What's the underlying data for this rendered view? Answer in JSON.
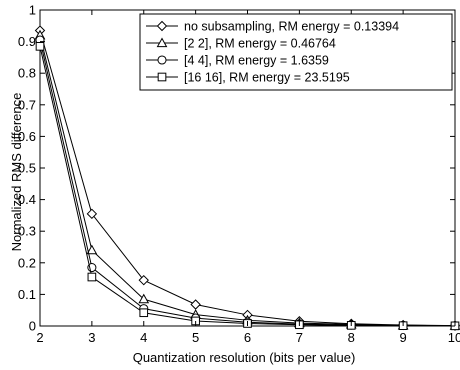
{
  "chart_data": {
    "type": "line",
    "xlabel": "Quantization resolution (bits per value)",
    "ylabel": "Normalized RMS difference",
    "xlim": [
      2,
      10
    ],
    "ylim": [
      0,
      1
    ],
    "x_ticks": [
      "2",
      "3",
      "4",
      "5",
      "6",
      "7",
      "8",
      "9",
      "10"
    ],
    "y_ticks": [
      "0",
      "0.1",
      "0.2",
      "0.3",
      "0.4",
      "0.5",
      "0.6",
      "0.7",
      "0.8",
      "0.9",
      "1"
    ],
    "grid": false,
    "legend_position": "top-right",
    "x": [
      2,
      3,
      4,
      5,
      6,
      7,
      8,
      9,
      10
    ],
    "series": [
      {
        "name": "no subsampling, RM energy = 0.13394",
        "marker": "diamond",
        "values": [
          0.935,
          0.355,
          0.145,
          0.068,
          0.035,
          0.015,
          0.007,
          0.003,
          0.001
        ]
      },
      {
        "name": "[2 2], RM energy = 0.46764",
        "marker": "triangle",
        "values": [
          0.92,
          0.24,
          0.085,
          0.036,
          0.018,
          0.009,
          0.005,
          0.002,
          0.001
        ]
      },
      {
        "name": "[4 4], RM energy = 1.6359",
        "marker": "circle",
        "values": [
          0.905,
          0.185,
          0.055,
          0.025,
          0.012,
          0.006,
          0.003,
          0.002,
          0.001
        ]
      },
      {
        "name": "[16 16], RM energy = 23.5195",
        "marker": "square",
        "values": [
          0.885,
          0.155,
          0.042,
          0.016,
          0.008,
          0.004,
          0.002,
          0.001,
          0.0005
        ]
      }
    ]
  }
}
